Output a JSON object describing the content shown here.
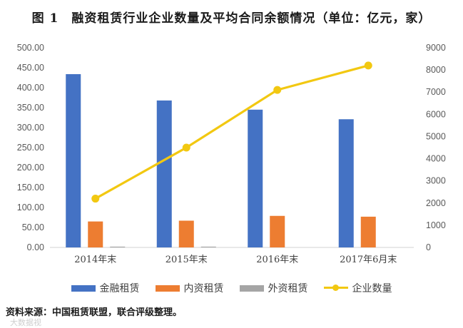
{
  "title": {
    "figure_no": "图 1",
    "text": "融资租赁行业企业数量及平均合同余额情况（单位：亿元，家）"
  },
  "source": "资料来源：中国租赁联盟，联合评级整理。",
  "watermark": "大数据视",
  "colors": {
    "finance": "#4472C4",
    "domestic": "#ED7D31",
    "foreign": "#A5A5A5",
    "count": "#F2C811"
  },
  "chart_data": {
    "type": "bar",
    "categories": [
      "2014年末",
      "2015年末",
      "2016年末",
      "2017年6月末"
    ],
    "series": [
      {
        "name": "金融租赁",
        "type": "bar",
        "axis": "left",
        "values": [
          434,
          368,
          345,
          321
        ]
      },
      {
        "name": "内资租赁",
        "type": "bar",
        "axis": "left",
        "values": [
          65,
          67,
          79,
          77
        ]
      },
      {
        "name": "外资租赁",
        "type": "bar",
        "axis": "left",
        "values": [
          2,
          2,
          0,
          0
        ]
      },
      {
        "name": "企业数量",
        "type": "line",
        "axis": "right",
        "values": [
          2200,
          4500,
          7100,
          8200
        ]
      }
    ],
    "y_left": {
      "min": 0,
      "max": 500,
      "step": 50,
      "tick_labels": [
        "0.00",
        "50.00",
        "100.00",
        "150.00",
        "200.00",
        "250.00",
        "300.00",
        "350.00",
        "400.00",
        "450.00",
        "500.00"
      ]
    },
    "y_right": {
      "min": 0,
      "max": 9000,
      "step": 1000,
      "tick_labels": [
        "0",
        "1000",
        "2000",
        "3000",
        "4000",
        "5000",
        "6000",
        "7000",
        "8000",
        "9000"
      ]
    },
    "grid": false,
    "legend_position": "bottom"
  }
}
